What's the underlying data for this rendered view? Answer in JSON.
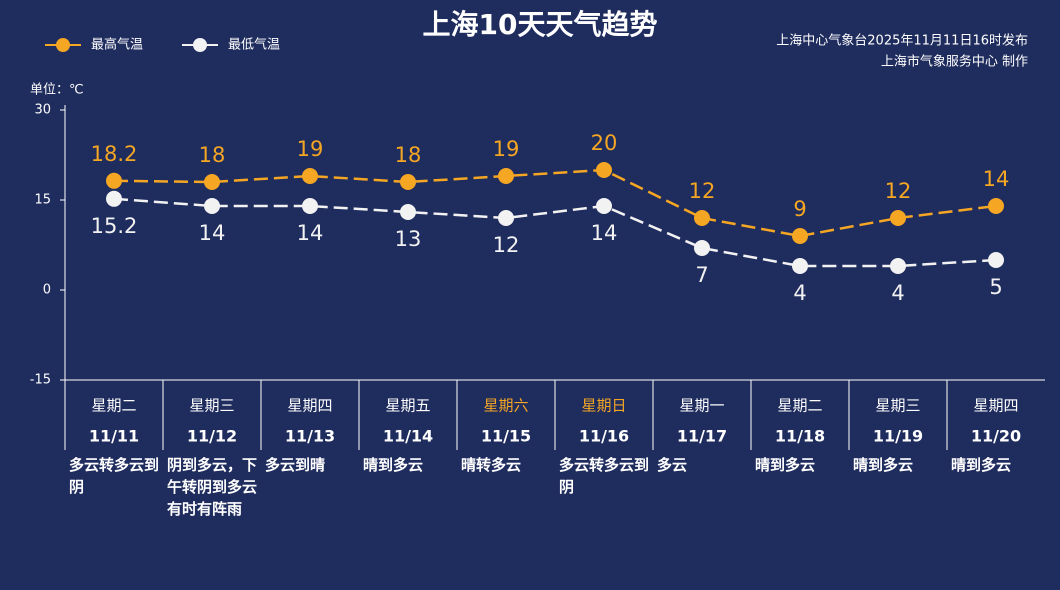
{
  "chart_data": {
    "type": "line",
    "title": "上海10天天气趋势",
    "source": [
      "上海中心气象台2025年11月11日16时发布",
      "上海市气象服务中心  制作"
    ],
    "unit_label": "单位：℃",
    "categories": [
      "11/11",
      "11/12",
      "11/13",
      "11/14",
      "11/15",
      "11/16",
      "11/17",
      "11/18",
      "11/19",
      "11/20"
    ],
    "weekdays": [
      "星期二",
      "星期三",
      "星期四",
      "星期五",
      "星期六",
      "星期日",
      "星期一",
      "星期二",
      "星期三",
      "星期四"
    ],
    "weekday_colors": [
      "#ffffff",
      "#ffffff",
      "#ffffff",
      "#ffffff",
      "#f5a623",
      "#f5a623",
      "#ffffff",
      "#ffffff",
      "#ffffff",
      "#ffffff"
    ],
    "weather": [
      "多云转多云到阴",
      "阴到多云，下午转阴到多云有时有阵雨",
      "多云到晴",
      "晴到多云",
      "晴转多云",
      "多云转多云到阴",
      "多云",
      "晴到多云",
      "晴到多云",
      "晴到多云"
    ],
    "series": [
      {
        "name": "最高气温",
        "color": "#f5a623",
        "values": [
          18.2,
          18,
          19,
          18,
          19,
          20,
          12,
          9,
          12,
          14
        ]
      },
      {
        "name": "最低气温",
        "color": "#f2f2f2",
        "values": [
          15.2,
          14,
          14,
          13,
          12,
          14,
          7,
          4,
          4,
          5
        ]
      }
    ],
    "ylim": [
      -15,
      30
    ],
    "yticks": [
      30,
      15,
      0,
      -15
    ],
    "grid": false
  }
}
